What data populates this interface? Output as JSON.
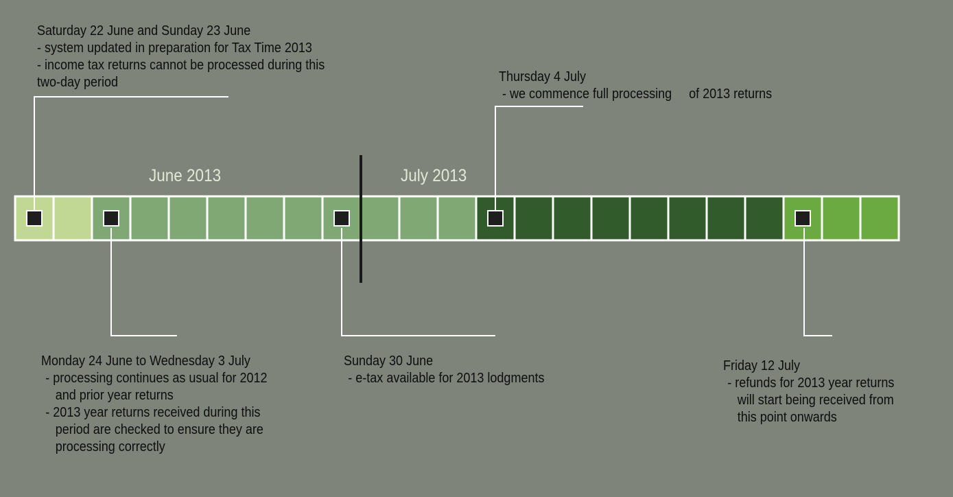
{
  "months": [
    {
      "label": "June 2013"
    },
    {
      "label": "July 2013"
    }
  ],
  "days": [
    {
      "date": "22 June",
      "color": "#c0d894",
      "marker": true
    },
    {
      "date": "23 June",
      "color": "#c0d894",
      "marker": false
    },
    {
      "date": "24 June",
      "color": "#7fa874",
      "marker": true
    },
    {
      "date": "25 June",
      "color": "#7fa874",
      "marker": false
    },
    {
      "date": "26 June",
      "color": "#7fa874",
      "marker": false
    },
    {
      "date": "27 June",
      "color": "#7fa874",
      "marker": false
    },
    {
      "date": "28 June",
      "color": "#7fa874",
      "marker": false
    },
    {
      "date": "29 June",
      "color": "#7fa874",
      "marker": false
    },
    {
      "date": "30 June",
      "color": "#7fa874",
      "marker": true
    },
    {
      "date": "1 July",
      "color": "#7fa874",
      "marker": false
    },
    {
      "date": "2 July",
      "color": "#7fa874",
      "marker": false
    },
    {
      "date": "3 July",
      "color": "#7fa874",
      "marker": false
    },
    {
      "date": "4 July",
      "color": "#325b2c",
      "marker": true
    },
    {
      "date": "5 July",
      "color": "#325b2c",
      "marker": false
    },
    {
      "date": "6 July",
      "color": "#325b2c",
      "marker": false
    },
    {
      "date": "7 July",
      "color": "#325b2c",
      "marker": false
    },
    {
      "date": "8 July",
      "color": "#325b2c",
      "marker": false
    },
    {
      "date": "9 July",
      "color": "#325b2c",
      "marker": false
    },
    {
      "date": "10 July",
      "color": "#325b2c",
      "marker": false
    },
    {
      "date": "11 July",
      "color": "#325b2c",
      "marker": false
    },
    {
      "date": "12 July",
      "color": "#6aaa40",
      "marker": true
    },
    {
      "date": "13 July",
      "color": "#6aaa40",
      "marker": false
    },
    {
      "date": "14 July",
      "color": "#6aaa40",
      "marker": false
    }
  ],
  "notes": {
    "sat22": {
      "title": "Saturday 22 June and Sunday 23 June",
      "line1": "- system updated in preparation for Tax Time 2013",
      "line2": "- income tax returns cannot be processed during this",
      "line3": "two-day period"
    },
    "thu4": {
      "title": "Thursday 4 July",
      "line1": " - we commence full processing     of 2013 returns"
    },
    "mon24": {
      "title": "Monday 24 June to Wednesday 3 July",
      "line1": "- processing continues as usual for 2012",
      "line2": "and prior year returns",
      "line3": "- 2013 year returns received during this",
      "line4": "period are checked to ensure they are",
      "line5": "processing correctly"
    },
    "sun30": {
      "title": "Sunday 30 June",
      "line1": "- e-tax available for 2013 lodgments"
    },
    "fri12": {
      "title": "Friday 12 July",
      "line1": "- refunds for 2013 year returns",
      "line2": "will start being received from",
      "line3": "this point onwards"
    }
  },
  "colors": {
    "background": "#7f847b",
    "cell_border": "#ffffff",
    "marker": "#1e1e1e",
    "divider": "#1a1a1a",
    "connector": "#ffffff"
  }
}
